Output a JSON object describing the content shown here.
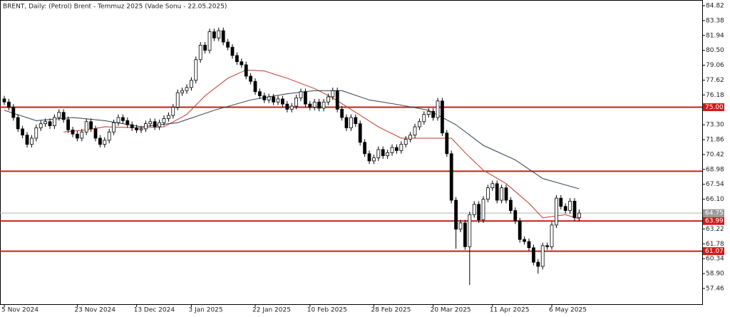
{
  "chart_data": {
    "type": "candlestick",
    "title": "BRENT, Daily:  (Petrol) Brent - Temmuz 2025 (Vade Sonu - 22.05.2025)",
    "categories": [
      "5 Nov 2024",
      null,
      null,
      null,
      null,
      null,
      null,
      null,
      null,
      null,
      null,
      null,
      null,
      null,
      null,
      null,
      "23 Nov 2024",
      null,
      null,
      null,
      null,
      null,
      null,
      null,
      null,
      null,
      null,
      null,
      null,
      "13 Dec 2024",
      null,
      null,
      null,
      null,
      null,
      null,
      null,
      null,
      null,
      null,
      null,
      "3 Jan 2025",
      null,
      null,
      null,
      null,
      null,
      null,
      null,
      null,
      null,
      null,
      null,
      null,
      null,
      "22 Jan 2025",
      null,
      null,
      null,
      null,
      null,
      null,
      null,
      null,
      null,
      null,
      null,
      "10 Feb 2025",
      null,
      null,
      null,
      null,
      null,
      null,
      null,
      null,
      null,
      null,
      null,
      null,
      null,
      "28 Feb 2025",
      null,
      null,
      null,
      null,
      null,
      null,
      null,
      null,
      null,
      null,
      null,
      null,
      "20 Mar 2025",
      null,
      null,
      null,
      null,
      null,
      null,
      null,
      null,
      null,
      null,
      null,
      null,
      "11 Apr 2025",
      null,
      null,
      null,
      null,
      null,
      null,
      null,
      null,
      null,
      null,
      null,
      null,
      "6 May 2025",
      null,
      null,
      null,
      null,
      null,
      null
    ],
    "open": [
      75.8,
      75.5,
      75.0,
      74.0,
      72.9,
      72.3,
      71.4,
      72.0,
      73.0,
      73.4,
      73.6,
      73.2,
      74.0,
      74.5,
      73.8,
      72.8,
      72.4,
      72.0,
      72.6,
      73.6,
      72.9,
      72.0,
      71.4,
      71.8,
      72.6,
      73.5,
      74.0,
      73.7,
      73.3,
      73.0,
      72.8,
      72.9,
      73.4,
      73.6,
      73.1,
      73.5,
      73.9,
      74.2,
      75.0,
      76.4,
      76.6,
      76.9,
      77.6,
      79.6,
      81.0,
      80.5,
      82.3,
      81.7,
      82.4,
      81.3,
      80.8,
      80.0,
      79.4,
      79.1,
      78.0,
      77.5,
      76.5,
      76.1,
      75.7,
      76.0,
      75.5,
      75.8,
      75.3,
      74.8,
      75.1,
      75.9,
      76.5,
      75.3,
      75.0,
      75.5,
      74.9,
      75.5,
      76.0,
      76.6,
      74.8,
      74.0,
      73.0,
      74.0,
      73.4,
      71.6,
      70.5,
      69.8,
      70.1,
      70.9,
      70.3,
      70.6,
      71.1,
      70.8,
      71.4,
      71.9,
      72.3,
      73.1,
      73.6,
      74.3,
      74.6,
      74.0,
      75.6,
      72.5,
      70.5,
      66.0,
      63.2,
      63.8,
      61.5,
      64.6,
      65.6,
      64.1,
      66.1,
      67.2,
      67.6,
      66.0,
      67.2,
      66.0,
      65.0,
      64.0,
      62.2,
      62.0,
      61.4,
      60.0,
      59.6,
      61.6,
      61.5,
      63.6,
      66.2,
      65.4,
      65.0,
      65.9,
      64.3
    ],
    "high": [
      76.1,
      75.8,
      75.3,
      74.3,
      73.2,
      72.6,
      72.3,
      73.3,
      73.7,
      73.9,
      73.9,
      74.3,
      74.8,
      74.8,
      74.1,
      73.1,
      72.7,
      72.9,
      73.9,
      73.9,
      73.2,
      72.3,
      72.1,
      72.9,
      73.8,
      74.3,
      74.3,
      74.0,
      73.6,
      73.3,
      73.2,
      73.7,
      73.9,
      73.9,
      73.8,
      74.2,
      74.5,
      75.3,
      76.7,
      76.9,
      77.2,
      77.9,
      79.9,
      81.3,
      81.3,
      82.6,
      82.6,
      82.7,
      82.7,
      81.6,
      81.1,
      80.3,
      79.7,
      79.4,
      78.3,
      77.8,
      76.8,
      76.4,
      76.3,
      76.3,
      76.1,
      76.1,
      75.6,
      75.4,
      76.2,
      76.8,
      76.8,
      75.6,
      75.8,
      75.8,
      75.8,
      76.3,
      76.9,
      76.9,
      75.1,
      74.3,
      74.3,
      74.3,
      73.7,
      71.9,
      70.8,
      70.4,
      71.2,
      71.2,
      70.9,
      71.4,
      71.4,
      71.7,
      72.2,
      72.6,
      73.4,
      73.9,
      74.6,
      74.9,
      74.9,
      75.9,
      75.9,
      72.8,
      70.8,
      66.3,
      64.1,
      64.1,
      64.9,
      65.9,
      65.9,
      66.4,
      67.5,
      67.9,
      67.9,
      67.5,
      67.5,
      66.3,
      65.3,
      64.3,
      62.5,
      62.3,
      61.7,
      60.3,
      61.9,
      61.9,
      63.9,
      66.5,
      66.5,
      65.7,
      66.2,
      66.2,
      65.1
    ],
    "low": [
      75.2,
      74.7,
      73.7,
      72.6,
      72.0,
      71.1,
      71.1,
      71.7,
      72.7,
      73.1,
      72.9,
      72.9,
      73.7,
      73.5,
      72.5,
      72.1,
      71.7,
      71.7,
      72.3,
      72.6,
      71.7,
      71.1,
      71.1,
      71.5,
      72.3,
      73.2,
      73.4,
      73.0,
      72.7,
      72.5,
      72.5,
      72.6,
      73.1,
      72.8,
      72.8,
      73.2,
      73.6,
      73.9,
      74.7,
      76.1,
      76.3,
      76.6,
      77.3,
      79.3,
      80.2,
      80.2,
      81.4,
      81.4,
      81.0,
      80.5,
      79.7,
      79.1,
      78.8,
      77.7,
      77.2,
      76.2,
      75.8,
      75.4,
      75.4,
      75.2,
      75.2,
      75.0,
      74.5,
      74.5,
      74.8,
      75.6,
      75.0,
      74.7,
      74.7,
      74.6,
      74.6,
      75.2,
      75.7,
      74.5,
      73.7,
      72.7,
      72.7,
      73.1,
      71.3,
      70.2,
      69.5,
      69.5,
      69.8,
      70.0,
      70.0,
      70.3,
      70.5,
      70.5,
      71.1,
      71.6,
      72.0,
      72.8,
      73.3,
      74.0,
      73.7,
      73.7,
      72.2,
      70.2,
      65.7,
      61.3,
      62.9,
      61.2,
      57.8,
      64.3,
      63.8,
      63.8,
      65.8,
      66.9,
      65.7,
      65.7,
      65.7,
      64.7,
      63.7,
      61.9,
      61.7,
      61.1,
      59.7,
      58.9,
      59.3,
      61.2,
      61.2,
      63.3,
      65.1,
      64.7,
      64.7,
      64.0,
      64.0
    ],
    "close": [
      75.5,
      75.0,
      74.0,
      72.9,
      72.3,
      71.4,
      72.0,
      73.0,
      73.4,
      73.6,
      73.2,
      74.0,
      74.5,
      73.8,
      72.8,
      72.4,
      72.0,
      72.6,
      73.6,
      72.9,
      72.0,
      71.4,
      71.8,
      72.6,
      73.5,
      74.0,
      73.7,
      73.3,
      73.0,
      72.8,
      72.9,
      73.4,
      73.6,
      73.1,
      73.5,
      73.9,
      74.2,
      75.0,
      76.4,
      76.6,
      76.9,
      77.6,
      79.6,
      81.0,
      80.5,
      82.3,
      81.7,
      82.4,
      81.3,
      80.8,
      80.0,
      79.4,
      79.1,
      78.0,
      77.5,
      76.5,
      76.1,
      75.7,
      76.0,
      75.5,
      75.8,
      75.3,
      74.8,
      75.1,
      75.9,
      76.5,
      75.3,
      75.0,
      75.5,
      74.9,
      75.5,
      76.0,
      76.6,
      74.8,
      74.0,
      73.0,
      74.0,
      73.4,
      71.6,
      70.5,
      69.8,
      70.1,
      70.9,
      70.3,
      70.6,
      71.1,
      70.8,
      71.4,
      71.9,
      72.3,
      73.1,
      73.6,
      74.3,
      74.6,
      74.0,
      75.6,
      72.5,
      70.5,
      66.0,
      63.2,
      63.8,
      61.5,
      64.6,
      65.6,
      64.1,
      66.1,
      67.2,
      67.6,
      66.0,
      67.2,
      66.0,
      65.0,
      64.0,
      62.2,
      62.0,
      61.4,
      60.0,
      59.6,
      61.6,
      61.5,
      63.6,
      66.2,
      65.4,
      65.0,
      65.9,
      64.3,
      64.75
    ],
    "up_color": "#ffffff",
    "down_color": "#000000",
    "ylim": [
      55.94,
      85.37
    ],
    "yticks": [
      84.82,
      83.38,
      81.94,
      {
        "value": 80.5,
        "label": "80.50"
      },
      79.06,
      77.62,
      76.18,
      {
        "value": 73.3,
        "label": "73.30"
      },
      71.86,
      70.42,
      68.98,
      67.54,
      {
        "value": 66.1,
        "label": "66.10"
      },
      63.22,
      61.78,
      60.34,
      {
        "value": 58.9,
        "label": "58.90"
      },
      57.46
    ],
    "levels": [
      {
        "value": 75.0,
        "label": "75.00"
      },
      {
        "value": 68.8
      },
      {
        "value": 63.99,
        "label": "63.99"
      },
      {
        "value": 61.07,
        "label": "61.07"
      }
    ],
    "level_color": "#d11a1a",
    "current_price": {
      "value": 64.75,
      "label": "64.75"
    },
    "moving_averages": [
      {
        "color": "#c0392b",
        "x": [
          13,
          18,
          22,
          30,
          35,
          40,
          44,
          49,
          53,
          57,
          62,
          68,
          72,
          77,
          82,
          87,
          93,
          98,
          101,
          105,
          110,
          115,
          118,
          123,
          126
        ],
        "values": [
          72.6,
          72.8,
          73.1,
          73.0,
          73.1,
          74.3,
          76.1,
          77.8,
          78.6,
          78.5,
          77.8,
          76.8,
          75.9,
          74.5,
          73.1,
          72.0,
          72.0,
          72.0,
          70.6,
          68.9,
          67.6,
          65.7,
          64.3,
          64.6,
          64.2
        ]
      },
      {
        "color": "#2c3e50",
        "x": [
          0,
          7,
          15,
          22,
          30,
          38,
          46,
          54,
          62,
          68,
          74,
          80,
          87,
          93,
          99,
          105,
          112,
          118,
          126
        ],
        "values": [
          74.7,
          73.7,
          74.0,
          73.7,
          73.1,
          73.5,
          74.7,
          75.7,
          76.3,
          76.6,
          76.6,
          75.7,
          75.2,
          74.7,
          73.3,
          71.3,
          69.9,
          68.1,
          67.1
        ]
      }
    ]
  }
}
